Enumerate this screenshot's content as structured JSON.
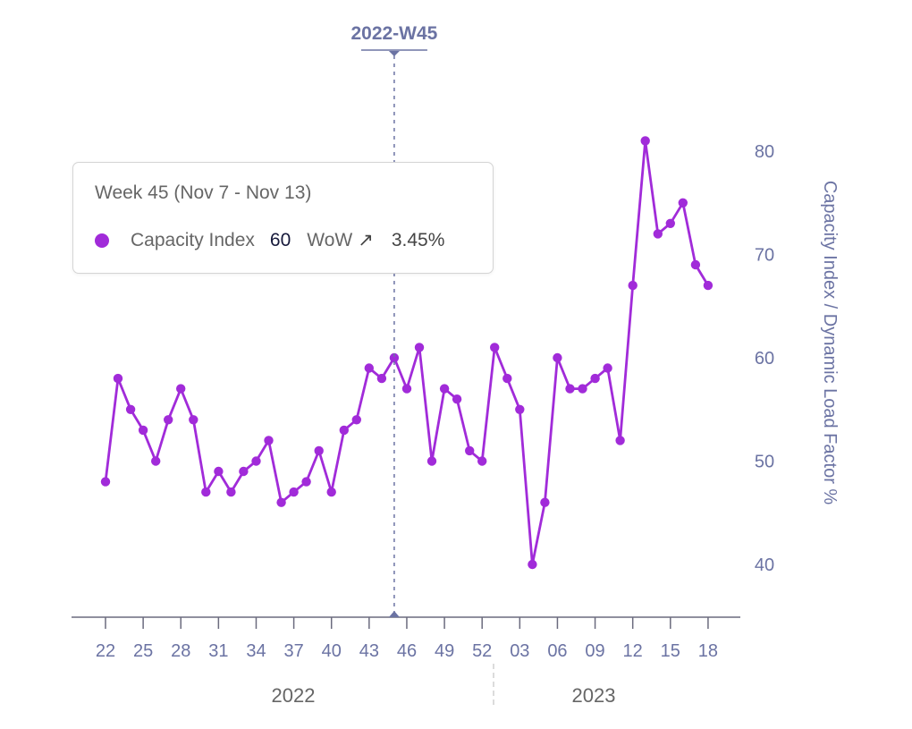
{
  "chart_data": {
    "type": "line",
    "ylabel": "Capacity Index / Dynamic Load Factor %",
    "y_ticks": [
      40,
      50,
      60,
      70,
      80
    ],
    "ylim": [
      35,
      82
    ],
    "grid": false,
    "x_tick_labels": [
      "22",
      "25",
      "28",
      "31",
      "34",
      "37",
      "40",
      "43",
      "46",
      "49",
      "52",
      "03",
      "06",
      "09",
      "12",
      "15",
      "18"
    ],
    "year_labels": [
      "2022",
      "2023"
    ],
    "series": [
      {
        "name": "Capacity Index",
        "color": "#a12bd9",
        "x": [
          "2022-W22",
          "2022-W23",
          "2022-W24",
          "2022-W25",
          "2022-W26",
          "2022-W27",
          "2022-W28",
          "2022-W29",
          "2022-W30",
          "2022-W31",
          "2022-W32",
          "2022-W33",
          "2022-W34",
          "2022-W35",
          "2022-W36",
          "2022-W37",
          "2022-W38",
          "2022-W39",
          "2022-W40",
          "2022-W41",
          "2022-W42",
          "2022-W43",
          "2022-W44",
          "2022-W45",
          "2022-W46",
          "2022-W47",
          "2022-W48",
          "2022-W49",
          "2022-W50",
          "2022-W51",
          "2022-W52",
          "2023-W01",
          "2023-W02",
          "2023-W03",
          "2023-W04",
          "2023-W05",
          "2023-W06",
          "2023-W07",
          "2023-W08",
          "2023-W09",
          "2023-W10",
          "2023-W11",
          "2023-W12",
          "2023-W13",
          "2023-W14",
          "2023-W15",
          "2023-W16",
          "2023-W17",
          "2023-W18"
        ],
        "values": [
          48,
          58,
          55,
          53,
          50,
          54,
          57,
          54,
          47,
          49,
          47,
          49,
          50,
          52,
          46,
          47,
          48,
          51,
          47,
          53,
          54,
          59,
          58,
          60,
          57,
          61,
          50,
          57,
          56,
          51,
          50,
          61,
          58,
          55,
          40,
          46,
          60,
          57,
          57,
          58,
          59,
          52,
          67,
          81,
          72,
          73,
          75,
          69,
          67
        ]
      }
    ]
  },
  "crosshair": {
    "label": "2022-W45"
  },
  "tooltip": {
    "title": "Week 45 (Nov 7 - Nov 13)",
    "series_name": "Capacity Index",
    "value": "60",
    "wow_label": "WoW",
    "wow_arrow": "↗",
    "wow_value": "3.45%"
  }
}
